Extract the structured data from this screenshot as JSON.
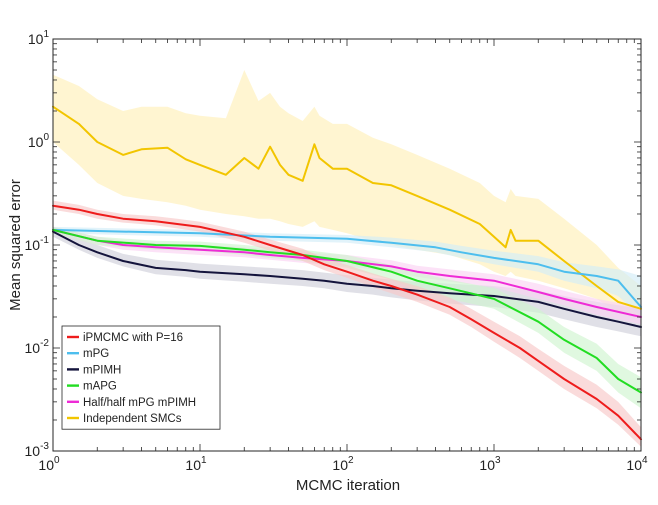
{
  "chart_data": {
    "type": "line",
    "title": "",
    "xlabel": "MCMC iteration",
    "ylabel": "Mean squared error",
    "xscale": "log",
    "yscale": "log",
    "xlim": [
      1,
      10000
    ],
    "ylim": [
      0.001,
      10
    ],
    "x_ticks": [
      {
        "base": "10",
        "exp": "0"
      },
      {
        "base": "10",
        "exp": "1"
      },
      {
        "base": "10",
        "exp": "2"
      },
      {
        "base": "10",
        "exp": "3"
      },
      {
        "base": "10",
        "exp": "4"
      }
    ],
    "y_ticks": [
      {
        "base": "10",
        "exp": "-3"
      },
      {
        "base": "10",
        "exp": "-2"
      },
      {
        "base": "10",
        "exp": "-1"
      },
      {
        "base": "10",
        "exp": "0"
      },
      {
        "base": "10",
        "exp": "1"
      }
    ],
    "legend_position": "bottom-left",
    "series": [
      {
        "name": "Independent SMCs",
        "color": "#F2C500",
        "band_color": "#FFF0B8",
        "x": [
          1,
          1.5,
          2,
          3,
          4,
          6,
          8,
          10,
          15,
          20,
          25,
          30,
          35,
          40,
          50,
          60,
          65,
          80,
          100,
          150,
          200,
          300,
          500,
          800,
          1000,
          1200,
          1300,
          1400,
          2000,
          3000,
          5000,
          7000,
          10000
        ],
        "values": [
          2.2,
          1.5,
          1.0,
          0.75,
          0.85,
          0.88,
          0.68,
          0.6,
          0.48,
          0.7,
          0.55,
          0.9,
          0.6,
          0.48,
          0.42,
          0.95,
          0.7,
          0.55,
          0.55,
          0.4,
          0.38,
          0.3,
          0.22,
          0.16,
          0.12,
          0.095,
          0.14,
          0.11,
          0.11,
          0.07,
          0.04,
          0.028,
          0.024
        ],
        "lower": [
          1.0,
          0.6,
          0.4,
          0.3,
          0.28,
          0.26,
          0.24,
          0.22,
          0.2,
          0.19,
          0.18,
          0.18,
          0.17,
          0.16,
          0.15,
          0.17,
          0.15,
          0.14,
          0.13,
          0.11,
          0.1,
          0.09,
          0.08,
          0.065,
          0.055,
          0.05,
          0.055,
          0.05,
          0.045,
          0.038,
          0.03,
          0.022,
          0.02
        ],
        "upper": [
          4.5,
          3.5,
          2.6,
          2.0,
          2.2,
          2.2,
          1.9,
          1.8,
          1.7,
          5.0,
          2.5,
          3.0,
          2.2,
          1.9,
          1.6,
          2.2,
          1.8,
          1.5,
          1.5,
          1.1,
          0.95,
          0.75,
          0.55,
          0.4,
          0.3,
          0.26,
          0.35,
          0.3,
          0.28,
          0.18,
          0.1,
          0.06,
          0.04
        ]
      },
      {
        "name": "mPG",
        "color": "#4DBEEE",
        "band_color": "#D2ECF8",
        "x": [
          1,
          3,
          10,
          30,
          100,
          200,
          400,
          600,
          1000,
          2000,
          3000,
          5000,
          7000,
          10000
        ],
        "values": [
          0.14,
          0.135,
          0.13,
          0.12,
          0.115,
          0.105,
          0.095,
          0.085,
          0.075,
          0.065,
          0.055,
          0.05,
          0.045,
          0.025
        ],
        "lower": [
          0.13,
          0.125,
          0.12,
          0.11,
          0.105,
          0.095,
          0.085,
          0.075,
          0.065,
          0.055,
          0.045,
          0.038,
          0.032,
          0.02
        ],
        "upper": [
          0.15,
          0.145,
          0.14,
          0.13,
          0.125,
          0.118,
          0.108,
          0.098,
          0.088,
          0.078,
          0.068,
          0.062,
          0.058,
          0.05
        ]
      },
      {
        "name": "mPIMH",
        "color": "#14143C",
        "band_color": "#D0D0DA",
        "x": [
          1,
          1.5,
          2,
          3,
          5,
          8,
          10,
          20,
          30,
          50,
          70,
          100,
          150,
          200,
          300,
          500,
          700,
          1000,
          2000,
          3000,
          5000,
          7000,
          10000
        ],
        "values": [
          0.135,
          0.1,
          0.085,
          0.07,
          0.06,
          0.057,
          0.055,
          0.052,
          0.05,
          0.047,
          0.045,
          0.042,
          0.04,
          0.038,
          0.036,
          0.034,
          0.033,
          0.032,
          0.028,
          0.024,
          0.02,
          0.018,
          0.016
        ],
        "lower": [
          0.12,
          0.09,
          0.075,
          0.062,
          0.052,
          0.049,
          0.047,
          0.044,
          0.042,
          0.04,
          0.038,
          0.035,
          0.033,
          0.031,
          0.029,
          0.027,
          0.026,
          0.025,
          0.022,
          0.019,
          0.016,
          0.0145,
          0.013
        ],
        "upper": [
          0.15,
          0.115,
          0.1,
          0.082,
          0.072,
          0.068,
          0.066,
          0.062,
          0.06,
          0.057,
          0.054,
          0.051,
          0.048,
          0.046,
          0.044,
          0.042,
          0.041,
          0.04,
          0.036,
          0.032,
          0.028,
          0.026,
          0.024
        ]
      },
      {
        "name": "Half/half mPG mPIMH",
        "color": "#EE2BD6",
        "band_color": "#FAD2F2",
        "x": [
          1,
          2,
          3,
          5,
          10,
          20,
          30,
          50,
          100,
          200,
          300,
          500,
          1000,
          2000,
          3000,
          5000,
          10000
        ],
        "values": [
          0.14,
          0.11,
          0.1,
          0.095,
          0.09,
          0.085,
          0.08,
          0.075,
          0.07,
          0.062,
          0.055,
          0.05,
          0.045,
          0.035,
          0.03,
          0.025,
          0.02
        ],
        "lower": [
          0.13,
          0.1,
          0.09,
          0.085,
          0.08,
          0.076,
          0.072,
          0.067,
          0.062,
          0.055,
          0.049,
          0.044,
          0.039,
          0.03,
          0.026,
          0.021,
          0.017
        ],
        "upper": [
          0.15,
          0.12,
          0.11,
          0.105,
          0.1,
          0.095,
          0.09,
          0.085,
          0.08,
          0.071,
          0.063,
          0.058,
          0.052,
          0.042,
          0.036,
          0.03,
          0.025
        ]
      },
      {
        "name": "mAPG",
        "color": "#22DD22",
        "band_color": "#CFF5CF",
        "x": [
          1,
          2,
          5,
          10,
          20,
          30,
          50,
          100,
          200,
          300,
          500,
          1000,
          2000,
          3000,
          5000,
          7000,
          10000
        ],
        "values": [
          0.14,
          0.11,
          0.1,
          0.098,
          0.09,
          0.085,
          0.08,
          0.07,
          0.055,
          0.045,
          0.038,
          0.03,
          0.018,
          0.012,
          0.008,
          0.005,
          0.0037
        ],
        "lower": [
          0.13,
          0.1,
          0.09,
          0.088,
          0.08,
          0.075,
          0.07,
          0.06,
          0.046,
          0.037,
          0.03,
          0.024,
          0.014,
          0.009,
          0.006,
          0.0037,
          0.0026
        ],
        "upper": [
          0.15,
          0.12,
          0.11,
          0.108,
          0.1,
          0.095,
          0.09,
          0.08,
          0.064,
          0.054,
          0.046,
          0.038,
          0.024,
          0.016,
          0.011,
          0.007,
          0.0052
        ]
      },
      {
        "name": "iPMCMC with P=16",
        "color": "#EE1C1C",
        "band_color": "#F8C8C8",
        "x": [
          1,
          1.5,
          2,
          3,
          5,
          7,
          10,
          20,
          30,
          50,
          70,
          100,
          150,
          200,
          300,
          500,
          700,
          1000,
          1500,
          2000,
          3000,
          5000,
          7000,
          10000
        ],
        "values": [
          0.24,
          0.22,
          0.2,
          0.18,
          0.17,
          0.16,
          0.15,
          0.12,
          0.1,
          0.08,
          0.065,
          0.055,
          0.045,
          0.04,
          0.033,
          0.025,
          0.019,
          0.014,
          0.01,
          0.0075,
          0.005,
          0.0032,
          0.0022,
          0.0013
        ],
        "lower": [
          0.22,
          0.2,
          0.18,
          0.165,
          0.155,
          0.145,
          0.135,
          0.105,
          0.088,
          0.07,
          0.057,
          0.048,
          0.039,
          0.034,
          0.028,
          0.021,
          0.016,
          0.0115,
          0.008,
          0.006,
          0.004,
          0.0026,
          0.0018,
          0.0011
        ],
        "upper": [
          0.27,
          0.245,
          0.22,
          0.2,
          0.19,
          0.18,
          0.168,
          0.135,
          0.113,
          0.092,
          0.075,
          0.064,
          0.053,
          0.047,
          0.04,
          0.031,
          0.024,
          0.018,
          0.013,
          0.0098,
          0.0067,
          0.0044,
          0.003,
          0.0017
        ]
      }
    ],
    "legend_order": [
      "iPMCMC with P=16",
      "mPG",
      "mPIMH",
      "mAPG",
      "Half/half mPG mPIMH",
      "Independent SMCs"
    ]
  }
}
